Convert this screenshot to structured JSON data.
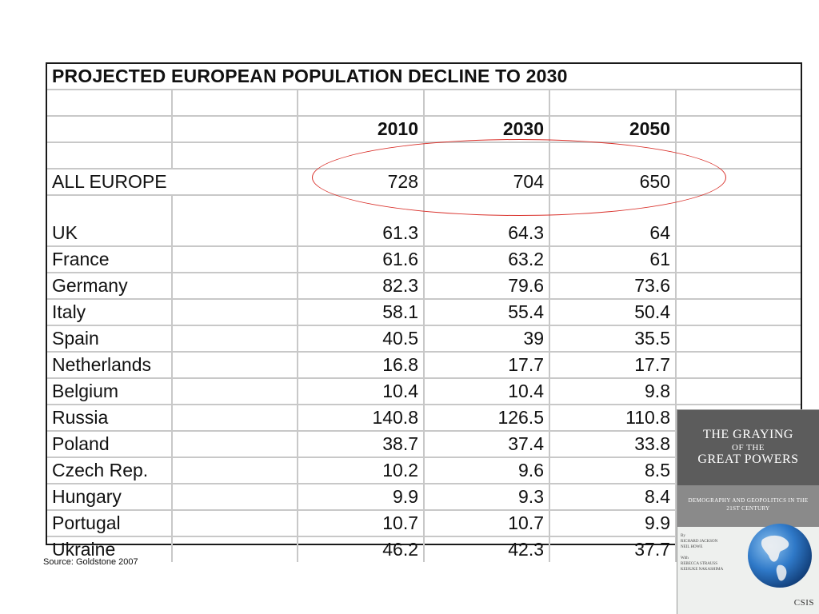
{
  "table": {
    "title": "PROJECTED EUROPEAN POPULATION DECLINE TO 2030",
    "years": [
      "2010",
      "2030",
      "2050"
    ],
    "all_europe": {
      "label": "ALL EUROPE",
      "values": [
        "728",
        "704",
        "650"
      ]
    },
    "countries": [
      {
        "label": "UK",
        "values": [
          "61.3",
          "64.3",
          "64"
        ]
      },
      {
        "label": "France",
        "values": [
          "61.6",
          "63.2",
          "61"
        ]
      },
      {
        "label": "Germany",
        "values": [
          "82.3",
          "79.6",
          "73.6"
        ]
      },
      {
        "label": "Italy",
        "values": [
          "58.1",
          "55.4",
          "50.4"
        ]
      },
      {
        "label": "Spain",
        "values": [
          "40.5",
          "39",
          "35.5"
        ]
      },
      {
        "label": "Netherlands",
        "values": [
          "16.8",
          "17.7",
          "17.7"
        ]
      },
      {
        "label": "Belgium",
        "values": [
          "10.4",
          "10.4",
          "9.8"
        ]
      },
      {
        "label": "Russia",
        "values": [
          "140.8",
          "126.5",
          "110.8"
        ]
      },
      {
        "label": "Poland",
        "values": [
          "38.7",
          "37.4",
          "33.8"
        ]
      },
      {
        "label": "Czech Rep.",
        "values": [
          "10.2",
          "9.6",
          "8.5"
        ]
      },
      {
        "label": "Hungary",
        "values": [
          "9.9",
          "9.3",
          "8.4"
        ]
      },
      {
        "label": "Portugal",
        "values": [
          "10.7",
          "10.7",
          "9.9"
        ]
      },
      {
        "label": "Ukraine",
        "values": [
          "46.2",
          "42.3",
          "37.7"
        ]
      }
    ]
  },
  "source_note": "Source: Goldstone 2007",
  "book_cover": {
    "title_line1": "THE GRAYING",
    "title_line2": "OF THE",
    "title_line3": "GREAT POWERS",
    "subtitle": "DEMOGRAPHY AND GEOPOLITICS IN THE 21ST CENTURY",
    "authors": [
      "By",
      "RICHARD JACKSON",
      "NEIL HOWE",
      "",
      "With",
      "REBECCA STRAUSS",
      "KEISUKE NAKASHIMA"
    ],
    "publisher": "CSIS"
  },
  "colors": {
    "highlight": "#d9302a",
    "table_border": "#1a1a1a",
    "grid": "#c8c8c8",
    "book_dark": "#5c5c5c",
    "book_band": "#8a8a8a",
    "globe": "#2f79c8"
  }
}
